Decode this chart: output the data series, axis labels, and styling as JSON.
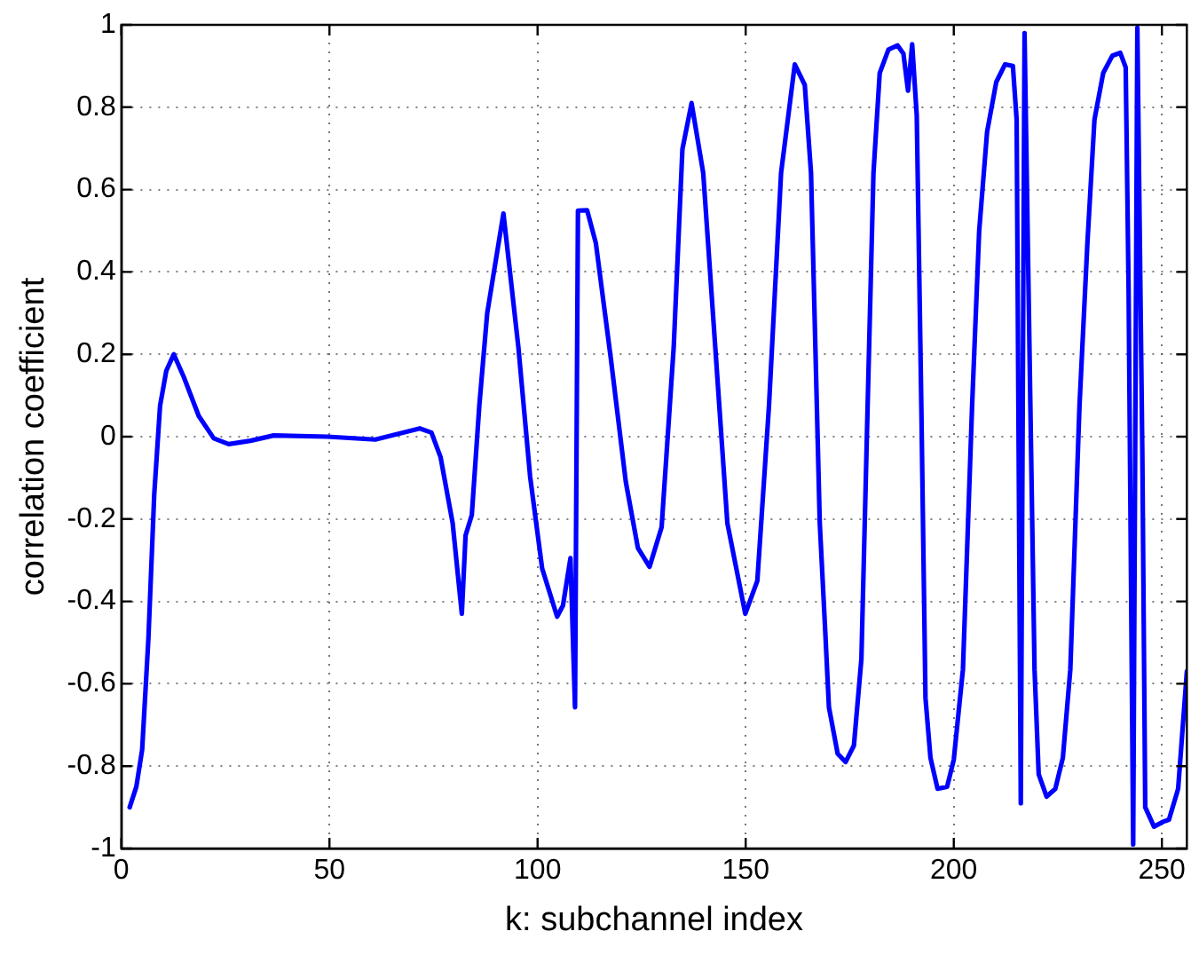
{
  "chart_data": {
    "type": "line",
    "xlabel": "k: subchannel index",
    "ylabel": "correlation coefficient",
    "xlim": [
      0,
      256
    ],
    "ylim": [
      -1,
      1
    ],
    "xticks": [
      0,
      50,
      100,
      150,
      200,
      250
    ],
    "yticks": [
      -1,
      -0.8,
      -0.6,
      -0.4,
      -0.2,
      0,
      0.2,
      0.4,
      0.6,
      0.8,
      1
    ],
    "grid": true,
    "marker": "none",
    "line_style": "solid",
    "legend": false,
    "series": [
      {
        "color": "#0000ff",
        "x": [
          2,
          3.6,
          5,
          6.5,
          7.9,
          9.3,
          10.8,
          12.6,
          15,
          18.6,
          22.2,
          25.8,
          31,
          36.6,
          49.5,
          61,
          71.7,
          74.5,
          76.7,
          79.6,
          81.8,
          82.7,
          84.2,
          86,
          87.9,
          91.8,
          95.4,
          98.2,
          101.1,
          104.7,
          106.1,
          107.9,
          109,
          109.7,
          111.9,
          114,
          117.6,
          121.2,
          124.1,
          126.9,
          129.8,
          132.7,
          134.8,
          137,
          139.8,
          142.7,
          145.6,
          149.9,
          152.8,
          155.6,
          158.5,
          161.8,
          164.2,
          165.7,
          167.8,
          169.2,
          170,
          172.1,
          174,
          176,
          177.8,
          179.3,
          180.7,
          182.2,
          184.3,
          186.5,
          187.9,
          189,
          190,
          191.1,
          192.2,
          193.2,
          194.4,
          196.1,
          198.4,
          200,
          202.2,
          204.4,
          206.1,
          208,
          210.2,
          212.3,
          214.2,
          215.1,
          216.1,
          217,
          218.4,
          219.4,
          220.4,
          222.3,
          224.4,
          226.2,
          228,
          230.2,
          232.1,
          233.8,
          235.9,
          238.1,
          240,
          241.3,
          242,
          243.1,
          244.1,
          245.3,
          246,
          248.1,
          250.3,
          251.7,
          253.9,
          256
        ],
        "values": [
          -0.9,
          -0.85,
          -0.76,
          -0.49,
          -0.14,
          0.075,
          0.16,
          0.2,
          0.145,
          0.05,
          -0.004,
          -0.018,
          -0.01,
          0.003,
          0,
          -0.007,
          0.02,
          0.01,
          -0.05,
          -0.21,
          -0.43,
          -0.24,
          -0.19,
          0.075,
          0.3,
          0.542,
          0.216,
          -0.096,
          -0.32,
          -0.437,
          -0.41,
          -0.295,
          -0.657,
          0.549,
          0.55,
          0.47,
          0.19,
          -0.11,
          -0.27,
          -0.316,
          -0.22,
          0.216,
          0.698,
          0.81,
          0.64,
          0.216,
          -0.21,
          -0.43,
          -0.35,
          0.075,
          0.64,
          0.904,
          0.854,
          0.64,
          -0.21,
          -0.49,
          -0.657,
          -0.77,
          -0.79,
          -0.75,
          -0.54,
          0.075,
          0.64,
          0.883,
          0.94,
          0.95,
          0.93,
          0.84,
          0.953,
          0.78,
          0.075,
          -0.635,
          -0.78,
          -0.855,
          -0.85,
          -0.784,
          -0.565,
          0.075,
          0.5,
          0.74,
          0.861,
          0.904,
          0.9,
          0.77,
          -0.89,
          0.98,
          0.075,
          -0.565,
          -0.82,
          -0.874,
          -0.855,
          -0.78,
          -0.565,
          0.075,
          0.47,
          0.77,
          0.883,
          0.925,
          0.932,
          0.897,
          0.357,
          -0.99,
          0.993,
          -0.04,
          -0.9,
          -0.947,
          -0.935,
          -0.93,
          -0.855,
          -0.57
        ]
      }
    ]
  }
}
